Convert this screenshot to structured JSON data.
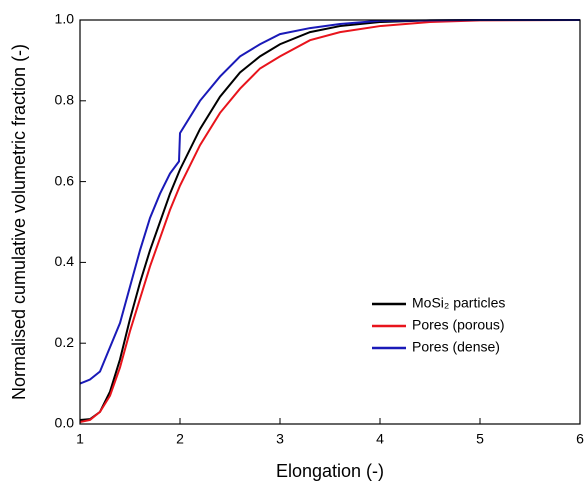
{
  "chart_data": {
    "type": "line",
    "xlabel": "Elongation (-)",
    "ylabel": "Normalised cumulative volumetric fraction (-)",
    "xlim": [
      1,
      6
    ],
    "xticks": [
      1,
      2,
      3,
      4,
      5,
      6
    ],
    "ylim": [
      0,
      1
    ],
    "yticks": [
      {
        "value": 0,
        "label": "0.0"
      },
      0.2,
      0.4,
      0.6,
      0.8,
      {
        "value": 1,
        "label": "1.0"
      }
    ],
    "legend": "lower right",
    "series": [
      {
        "name": "MoSi₂ particles",
        "color": "#000000",
        "x": [
          1.0,
          1.1,
          1.2,
          1.3,
          1.4,
          1.5,
          1.6,
          1.7,
          1.8,
          1.9,
          2.0,
          2.2,
          2.4,
          2.6,
          2.8,
          3.0,
          3.3,
          3.6,
          4.0,
          4.5,
          5.0,
          6.0
        ],
        "values": [
          0.01,
          0.012,
          0.03,
          0.08,
          0.16,
          0.26,
          0.35,
          0.43,
          0.5,
          0.57,
          0.63,
          0.73,
          0.81,
          0.87,
          0.91,
          0.94,
          0.97,
          0.985,
          0.995,
          0.999,
          1.0,
          1.0
        ]
      },
      {
        "name": "Pores (porous)",
        "color": "#e8141c",
        "x": [
          1.0,
          1.1,
          1.2,
          1.3,
          1.4,
          1.5,
          1.6,
          1.7,
          1.8,
          1.9,
          2.0,
          2.2,
          2.4,
          2.6,
          2.8,
          3.0,
          3.3,
          3.6,
          4.0,
          4.5,
          5.0,
          6.0
        ],
        "values": [
          0.005,
          0.01,
          0.03,
          0.07,
          0.14,
          0.23,
          0.31,
          0.39,
          0.46,
          0.53,
          0.59,
          0.69,
          0.77,
          0.83,
          0.88,
          0.91,
          0.95,
          0.97,
          0.985,
          0.995,
          0.999,
          1.0
        ]
      },
      {
        "name": "Pores (dense)",
        "color": "#1a1ab8",
        "x": [
          1.0,
          1.1,
          1.2,
          1.3,
          1.4,
          1.5,
          1.6,
          1.7,
          1.8,
          1.9,
          1.99,
          2.0,
          2.2,
          2.4,
          2.6,
          2.8,
          3.0,
          3.3,
          3.6,
          4.0,
          5.0,
          6.0
        ],
        "values": [
          0.1,
          0.11,
          0.13,
          0.19,
          0.25,
          0.34,
          0.43,
          0.51,
          0.57,
          0.62,
          0.65,
          0.72,
          0.8,
          0.86,
          0.91,
          0.94,
          0.965,
          0.98,
          0.99,
          0.998,
          1.0,
          1.0
        ]
      }
    ]
  }
}
